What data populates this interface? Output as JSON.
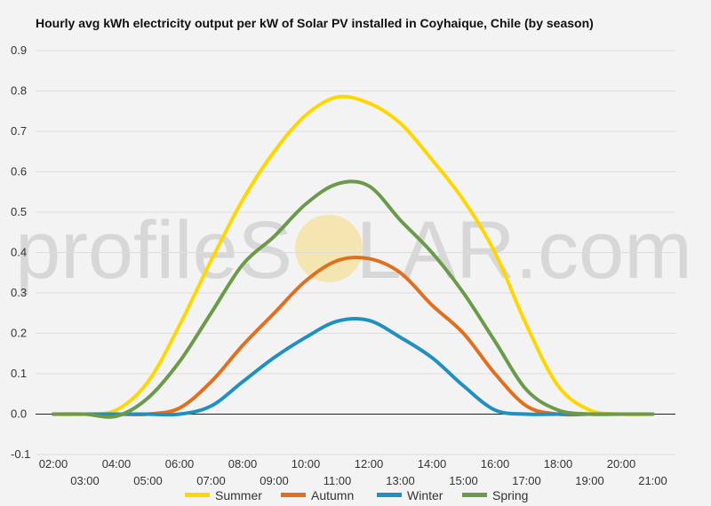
{
  "chart_data": {
    "type": "line",
    "title": "Hourly avg kWh electricity output per kW of Solar PV installed in Coyhaique, Chile (by season)",
    "xlabel": "",
    "ylabel": "",
    "ylim": [
      -0.1,
      0.9
    ],
    "yticks": [
      "-0.1",
      "0.0",
      "0.1",
      "0.2",
      "0.3",
      "0.4",
      "0.5",
      "0.6",
      "0.7",
      "0.8",
      "0.9"
    ],
    "x": [
      "02:00",
      "03:00",
      "04:00",
      "05:00",
      "06:00",
      "07:00",
      "08:00",
      "09:00",
      "10:00",
      "11:00",
      "12:00",
      "13:00",
      "14:00",
      "15:00",
      "16:00",
      "17:00",
      "18:00",
      "19:00",
      "20:00",
      "21:00"
    ],
    "grid": true,
    "legend": "bottom",
    "series": [
      {
        "name": "Summer",
        "color": "#ffd700",
        "values": [
          0,
          0,
          0.01,
          0.08,
          0.22,
          0.38,
          0.53,
          0.65,
          0.74,
          0.785,
          0.77,
          0.72,
          0.63,
          0.53,
          0.4,
          0.22,
          0.07,
          0.01,
          0,
          0
        ]
      },
      {
        "name": "Autumn",
        "color": "#e07020",
        "values": [
          0,
          0,
          0,
          0,
          0.015,
          0.08,
          0.17,
          0.25,
          0.33,
          0.38,
          0.385,
          0.35,
          0.27,
          0.2,
          0.1,
          0.02,
          0,
          0,
          0,
          0
        ]
      },
      {
        "name": "Winter",
        "color": "#2090c0",
        "values": [
          0,
          0,
          0,
          0,
          0,
          0.02,
          0.08,
          0.14,
          0.19,
          0.23,
          0.232,
          0.19,
          0.14,
          0.07,
          0.01,
          0,
          0,
          0,
          0,
          0
        ]
      },
      {
        "name": "Spring",
        "color": "#6a9a4a",
        "values": [
          0,
          0,
          -0.005,
          0.04,
          0.13,
          0.25,
          0.37,
          0.44,
          0.52,
          0.57,
          0.565,
          0.48,
          0.4,
          0.3,
          0.18,
          0.06,
          0.01,
          0,
          0,
          0
        ]
      }
    ]
  },
  "watermark": {
    "left": "profile",
    "s": "S",
    "o": "O",
    "right": "LAR.com"
  }
}
